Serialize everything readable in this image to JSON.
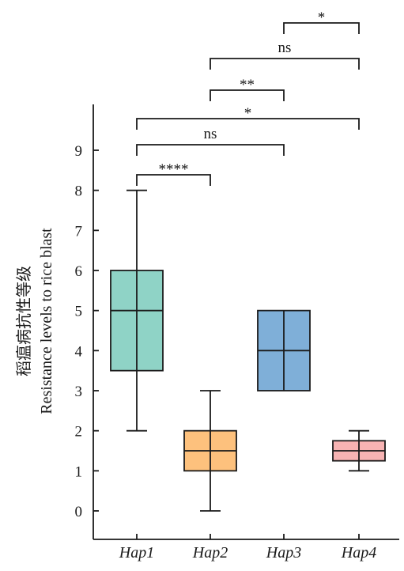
{
  "chart_data": {
    "type": "box",
    "title": "",
    "xlabel": "",
    "ylabel_cn": "稻瘟病抗性等级",
    "ylabel": "Resistance levels to rice blast",
    "ylim": [
      0,
      10
    ],
    "yticks": [
      "0",
      "1",
      "2",
      "3",
      "4",
      "5",
      "6",
      "7",
      "8",
      "9"
    ],
    "categories": [
      "Hap1",
      "Hap2",
      "Hap3",
      "Hap4"
    ],
    "boxes": [
      {
        "category": "Hap1",
        "min": 2,
        "q1": 3.5,
        "median": 5,
        "q3": 6,
        "max": 8,
        "color": "#8FD3C6"
      },
      {
        "category": "Hap2",
        "min": 0,
        "q1": 1,
        "median": 1.5,
        "q3": 2,
        "max": 3,
        "color": "#FDC17D"
      },
      {
        "category": "Hap3",
        "min": 3,
        "q1": 3,
        "median": 4,
        "q3": 5,
        "max": 5,
        "color": "#7FAFD8"
      },
      {
        "category": "Hap4",
        "min": 1,
        "q1": 1.25,
        "median": 1.5,
        "q3": 1.75,
        "max": 2,
        "color": "#F7B3B3"
      }
    ],
    "significance": [
      {
        "from": "Hap1",
        "to": "Hap2",
        "label": "****"
      },
      {
        "from": "Hap1",
        "to": "Hap3",
        "label": "ns"
      },
      {
        "from": "Hap1",
        "to": "Hap4",
        "label": "*"
      },
      {
        "from": "Hap2",
        "to": "Hap3",
        "label": "**"
      },
      {
        "from": "Hap2",
        "to": "Hap4",
        "label": "ns"
      },
      {
        "from": "Hap3",
        "to": "Hap4",
        "label": "*"
      }
    ],
    "grid": false,
    "legend": "none"
  }
}
